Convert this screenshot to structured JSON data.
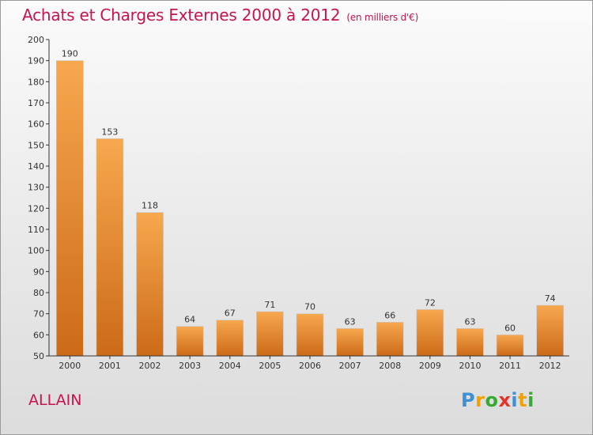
{
  "title": "Achats et Charges Externes 2000 à 2012",
  "subtitle": "(en milliers d'€)",
  "commune": "ALLAIN",
  "brand": {
    "letters": [
      "P",
      "r",
      "o",
      "x",
      "i",
      "t",
      "i"
    ],
    "colors": [
      "#3d8fd6",
      "#f2a200",
      "#39a935",
      "#e6332a",
      "#3d8fd6",
      "#f2a200",
      "#39a935"
    ]
  },
  "colors": {
    "accent": "#c8134d",
    "bar_light": "#f7a84e",
    "bar_dark": "#d06e1a",
    "axis": "#333333"
  },
  "chart_data": {
    "type": "bar",
    "categories": [
      "2000",
      "2001",
      "2002",
      "2003",
      "2004",
      "2005",
      "2006",
      "2007",
      "2008",
      "2009",
      "2010",
      "2011",
      "2012"
    ],
    "values": [
      190,
      153,
      118,
      64,
      67,
      71,
      70,
      63,
      66,
      72,
      63,
      60,
      74
    ],
    "ylim": [
      50,
      200
    ],
    "yticks": [
      50,
      60,
      70,
      80,
      90,
      100,
      110,
      120,
      130,
      140,
      150,
      160,
      170,
      180,
      190,
      200
    ],
    "grid": false,
    "data_labels": true
  }
}
